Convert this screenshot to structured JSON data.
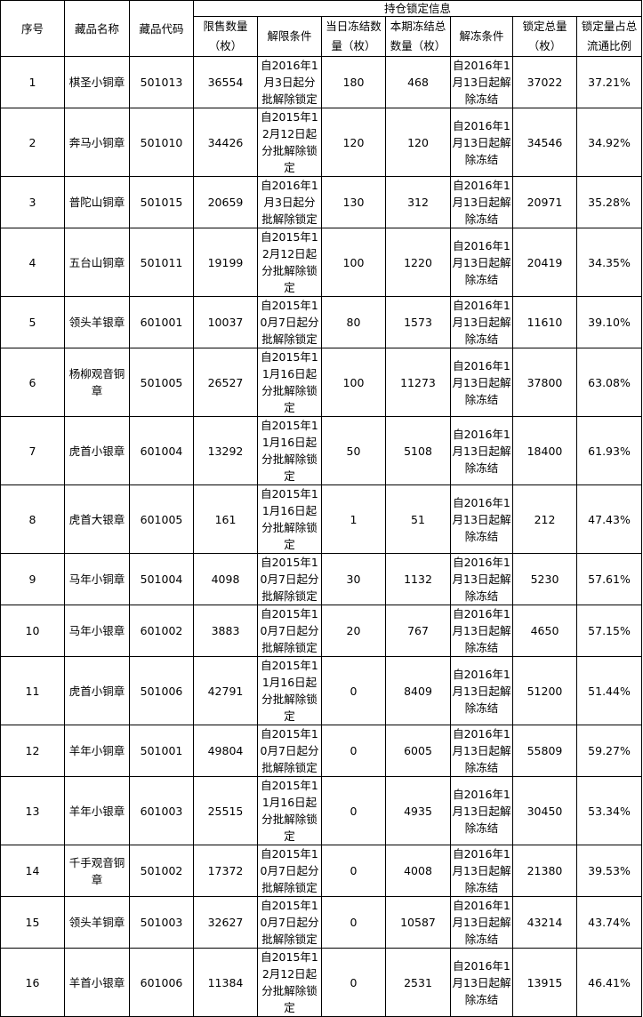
{
  "headers": {
    "seq": "序号",
    "name": "藏品名称",
    "code": "藏品代码",
    "group": "持仓锁定信息",
    "restricted": "限售数量（枚）",
    "unlock_cond": "解限条件",
    "day_frozen": "当日冻结数量（枚）",
    "period_frozen": "本期冻结总数量（枚）",
    "unfreeze_cond": "解冻条件",
    "locked_total": "锁定总量（枚）",
    "ratio": "锁定量占总流通比例"
  },
  "rows": [
    {
      "seq": "1",
      "name": "棋圣小铜章",
      "code": "501013",
      "restricted": "36554",
      "unlock": "自2016年1月3日起分批解除锁定",
      "day": "180",
      "period": "468",
      "unfreeze": "自2016年1月13日起解除冻结",
      "total": "37022",
      "ratio": "37.21%"
    },
    {
      "seq": "2",
      "name": "奔马小铜章",
      "code": "501010",
      "restricted": "34426",
      "unlock": "自2015年12月12日起分批解除锁定",
      "day": "120",
      "period": "120",
      "unfreeze": "自2016年1月13日起解除冻结",
      "total": "34546",
      "ratio": "34.92%"
    },
    {
      "seq": "3",
      "name": "普陀山铜章",
      "code": "501015",
      "restricted": "20659",
      "unlock": "自2016年1月3日起分批解除锁定",
      "day": "130",
      "period": "312",
      "unfreeze": "自2016年1月13日起解除冻结",
      "total": "20971",
      "ratio": "35.28%"
    },
    {
      "seq": "4",
      "name": "五台山铜章",
      "code": "501011",
      "restricted": "19199",
      "unlock": "自2015年12月12日起分批解除锁定",
      "day": "100",
      "period": "1220",
      "unfreeze": "自2016年1月13日起解除冻结",
      "total": "20419",
      "ratio": "34.35%"
    },
    {
      "seq": "5",
      "name": "领头羊银章",
      "code": "601001",
      "restricted": "10037",
      "unlock": "自2015年10月7日起分批解除锁定",
      "day": "80",
      "period": "1573",
      "unfreeze": "自2016年1月13日起解除冻结",
      "total": "11610",
      "ratio": "39.10%"
    },
    {
      "seq": "6",
      "name": "杨柳观音铜章",
      "code": "501005",
      "restricted": "26527",
      "unlock": "自2015年11月16日起分批解除锁定",
      "day": "100",
      "period": "11273",
      "unfreeze": "自2016年1月13日起解除冻结",
      "total": "37800",
      "ratio": "63.08%"
    },
    {
      "seq": "7",
      "name": "虎首小银章",
      "code": "601004",
      "restricted": "13292",
      "unlock": "自2015年11月16日起分批解除锁定",
      "day": "50",
      "period": "5108",
      "unfreeze": "自2016年1月13日起解除冻结",
      "total": "18400",
      "ratio": "61.93%"
    },
    {
      "seq": "8",
      "name": "虎首大银章",
      "code": "601005",
      "restricted": "161",
      "unlock": "自2015年11月16日起分批解除锁定",
      "day": "1",
      "period": "51",
      "unfreeze": "自2016年1月13日起解除冻结",
      "total": "212",
      "ratio": "47.43%"
    },
    {
      "seq": "9",
      "name": "马年小铜章",
      "code": "501004",
      "restricted": "4098",
      "unlock": "自2015年10月7日起分批解除锁定",
      "day": "30",
      "period": "1132",
      "unfreeze": "自2016年1月13日起解除冻结",
      "total": "5230",
      "ratio": "57.61%"
    },
    {
      "seq": "10",
      "name": "马年小银章",
      "code": "601002",
      "restricted": "3883",
      "unlock": "自2015年10月7日起分批解除锁定",
      "day": "20",
      "period": "767",
      "unfreeze": "自2016年1月13日起解除冻结",
      "total": "4650",
      "ratio": "57.15%"
    },
    {
      "seq": "11",
      "name": "虎首小铜章",
      "code": "501006",
      "restricted": "42791",
      "unlock": "自2015年11月16日起分批解除锁定",
      "day": "0",
      "period": "8409",
      "unfreeze": "自2016年1月13日起解除冻结",
      "total": "51200",
      "ratio": "51.44%"
    },
    {
      "seq": "12",
      "name": "羊年小铜章",
      "code": "501001",
      "restricted": "49804",
      "unlock": "自2015年10月7日起分批解除锁定",
      "day": "0",
      "period": "6005",
      "unfreeze": "自2016年1月13日起解除冻结",
      "total": "55809",
      "ratio": "59.27%"
    },
    {
      "seq": "13",
      "name": "羊年小银章",
      "code": "601003",
      "restricted": "25515",
      "unlock": "自2015年11月16日起分批解除锁定",
      "day": "0",
      "period": "4935",
      "unfreeze": "自2016年1月13日起解除冻结",
      "total": "30450",
      "ratio": "53.34%"
    },
    {
      "seq": "14",
      "name": "千手观音铜章",
      "code": "501002",
      "restricted": "17372",
      "unlock": "自2015年10月7日起分批解除锁定",
      "day": "0",
      "period": "4008",
      "unfreeze": "自2016年1月13日起解除冻结",
      "total": "21380",
      "ratio": "39.53%"
    },
    {
      "seq": "15",
      "name": "领头羊铜章",
      "code": "501003",
      "restricted": "32627",
      "unlock": "自2015年10月7日起分批解除锁定",
      "day": "0",
      "period": "10587",
      "unfreeze": "自2016年1月13日起解除冻结",
      "total": "43214",
      "ratio": "43.74%"
    },
    {
      "seq": "16",
      "name": "羊首小银章",
      "code": "601006",
      "restricted": "11384",
      "unlock": "自2015年12月12日起分批解除锁定",
      "day": "0",
      "period": "2531",
      "unfreeze": "自2016年1月13日起解除冻结",
      "total": "13915",
      "ratio": "46.41%"
    }
  ]
}
